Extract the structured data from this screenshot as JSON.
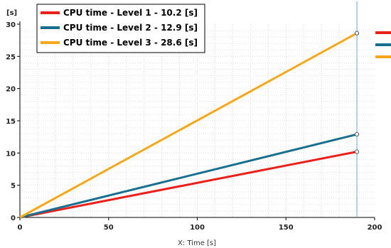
{
  "chart_data": {
    "type": "line",
    "title": "",
    "xlabel": "X: Time [s]",
    "ylabel": "[s]",
    "xlim": [
      0,
      200
    ],
    "ylim": [
      0,
      30
    ],
    "xticks": [
      "0",
      "50",
      "100",
      "150",
      "200"
    ],
    "yticks": [
      "0",
      "5",
      "10",
      "15",
      "20",
      "25",
      "30"
    ],
    "grid": true,
    "legend_position": "top-left",
    "cursor_x": 190,
    "series": [
      {
        "name": "CPU time  - Level 1 - 10.2 [s]",
        "color": "#e8211c",
        "x": [
          0,
          190
        ],
        "y": [
          0,
          10.2
        ]
      },
      {
        "name": "CPU time  - Level 2 - 12.9 [s]",
        "color": "#1a6f8e",
        "x": [
          0,
          190
        ],
        "y": [
          0,
          12.9
        ]
      },
      {
        "name": "CPU time  - Level 3 - 28.6 [s]",
        "color": "#f5a81c",
        "x": [
          0,
          190
        ],
        "y": [
          0,
          28.6
        ]
      }
    ]
  }
}
